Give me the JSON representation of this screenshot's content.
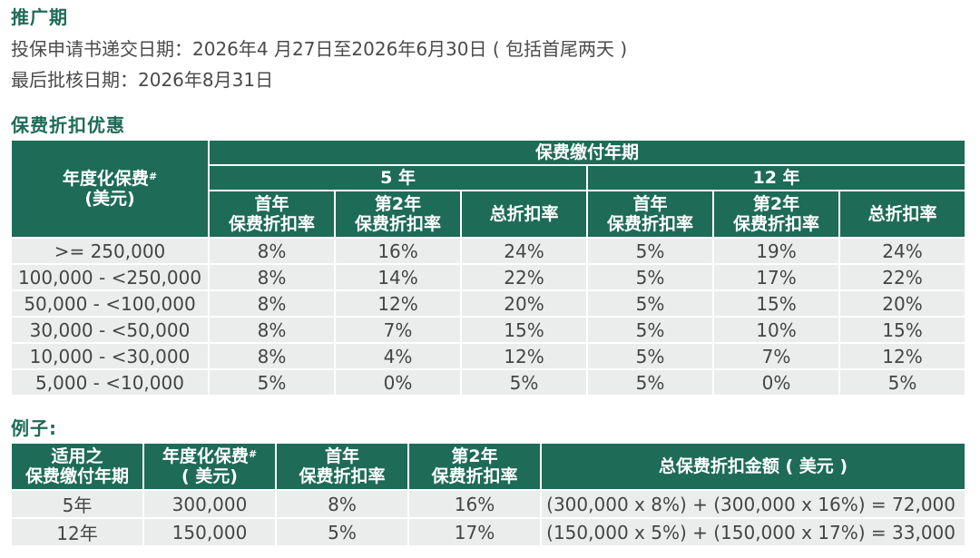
{
  "promo": {
    "title": "推广期",
    "application_period": "投保申请书递交日期：2026年4 月27日至2026年6月30日 ( 包括首尾两天 )",
    "approval_deadline": "最后批核日期：2026年8月31日"
  },
  "discount": {
    "title": "保费折扣优惠",
    "header": {
      "premium_col": "年度化保费",
      "premium_mark": "#",
      "premium_unit": "(美元)",
      "payment_term": "保费缴付年期",
      "term_5": "5 年",
      "term_12": "12 年",
      "first_year_l1": "首年",
      "first_year_l2": "保费折扣率",
      "second_year_l1": "第2年",
      "second_year_l2": "保费折扣率",
      "total_rate": "总折扣率"
    },
    "rows": [
      {
        "range": ">= 250,000",
        "c5_first": "8%",
        "c5_second": "16%",
        "c5_total": "24%",
        "c12_first": "5%",
        "c12_second": "19%",
        "c12_total": "24%"
      },
      {
        "range": "100,000 - <250,000",
        "c5_first": "8%",
        "c5_second": "14%",
        "c5_total": "22%",
        "c12_first": "5%",
        "c12_second": "17%",
        "c12_total": "22%"
      },
      {
        "range": "50,000 - <100,000",
        "c5_first": "8%",
        "c5_second": "12%",
        "c5_total": "20%",
        "c12_first": "5%",
        "c12_second": "15%",
        "c12_total": "20%"
      },
      {
        "range": "30,000 - <50,000",
        "c5_first": "8%",
        "c5_second": "7%",
        "c5_total": "15%",
        "c12_first": "5%",
        "c12_second": "10%",
        "c12_total": "15%"
      },
      {
        "range": "10,000 - <30,000",
        "c5_first": "8%",
        "c5_second": "4%",
        "c5_total": "12%",
        "c12_first": "5%",
        "c12_second": "7%",
        "c12_total": "12%"
      },
      {
        "range": "5,000 - <10,000",
        "c5_first": "5%",
        "c5_second": "0%",
        "c5_total": "5%",
        "c12_first": "5%",
        "c12_second": "0%",
        "c12_total": "5%"
      }
    ]
  },
  "example": {
    "title": "例子:",
    "header": {
      "term_l1": "适用之",
      "term_l2": "保费缴付年期",
      "premium_l1": "年度化保费",
      "premium_mark": "#",
      "premium_l2": "( 美元)",
      "first_l1": "首年",
      "first_l2": "保费折扣率",
      "second_l1": "第2年",
      "second_l2": "保费折扣率",
      "total_amount": "总保费折扣金额 ( 美元 )"
    },
    "rows": [
      {
        "term": "5年",
        "premium": "300,000",
        "first": "8%",
        "second": "16%",
        "formula": "(300,000 x 8%) + (300,000 x 16%) = 72,000"
      },
      {
        "term": "12年",
        "premium": "150,000",
        "first": "5%",
        "second": "17%",
        "formula": "(150,000 x 5%) + (150,000 x 17%) = 33,000"
      }
    ]
  }
}
